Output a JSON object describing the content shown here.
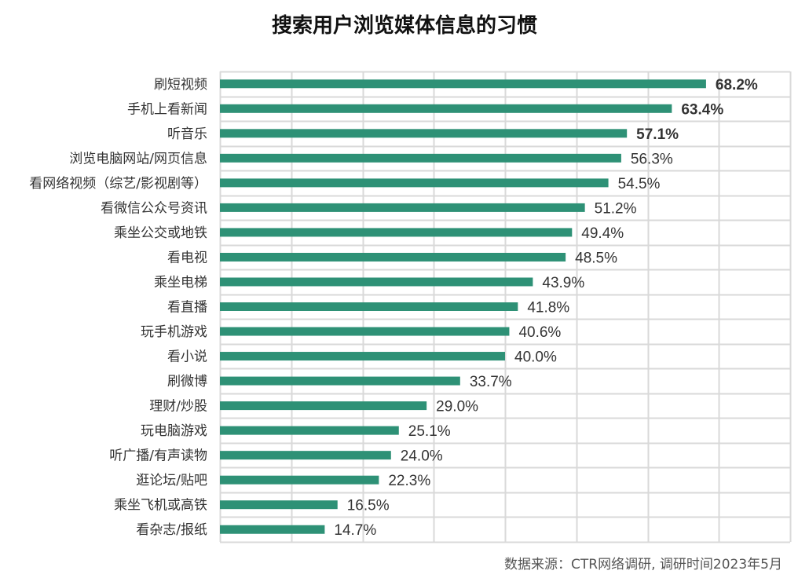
{
  "title": "搜索用户浏览媒体信息的习惯",
  "source": "数据来源：CTR网络调研, 调研时间2023年5月",
  "colors": {
    "bar": "#2e9176",
    "grid": "#d9d9d9",
    "text": "#333333"
  },
  "chart_data": {
    "type": "bar",
    "orientation": "horizontal",
    "title": "搜索用户浏览媒体信息的习惯",
    "xlim": [
      0,
      80
    ],
    "grid": true,
    "categories": [
      "刷短视频",
      "手机上看新闻",
      "听音乐",
      "浏览电脑网站/网页信息",
      "看网络视频（综艺/影视剧等）",
      "看微信公众号资讯",
      "乘坐公交或地铁",
      "看电视",
      "乘坐电梯",
      "看直播",
      "玩手机游戏",
      "看小说",
      "刷微博",
      "理财/炒股",
      "玩电脑游戏",
      "听广播/有声读物",
      "逛论坛/贴吧",
      "乘坐飞机或高铁",
      "看杂志/报纸"
    ],
    "values": [
      68.2,
      63.4,
      57.1,
      56.3,
      54.5,
      51.2,
      49.4,
      48.5,
      43.9,
      41.8,
      40.6,
      40.0,
      33.7,
      29.0,
      25.1,
      24.0,
      22.3,
      16.5,
      14.7
    ],
    "value_labels": [
      "68.2%",
      "63.4%",
      "57.1%",
      "56.3%",
      "54.5%",
      "51.2%",
      "49.4%",
      "48.5%",
      "43.9%",
      "41.8%",
      "40.6%",
      "40.0%",
      "33.7%",
      "29.0%",
      "25.1%",
      "24.0%",
      "22.3%",
      "16.5%",
      "14.7%"
    ],
    "bold_labels": [
      true,
      true,
      true,
      false,
      false,
      false,
      false,
      false,
      false,
      false,
      false,
      false,
      false,
      false,
      false,
      false,
      false,
      false,
      false
    ]
  }
}
